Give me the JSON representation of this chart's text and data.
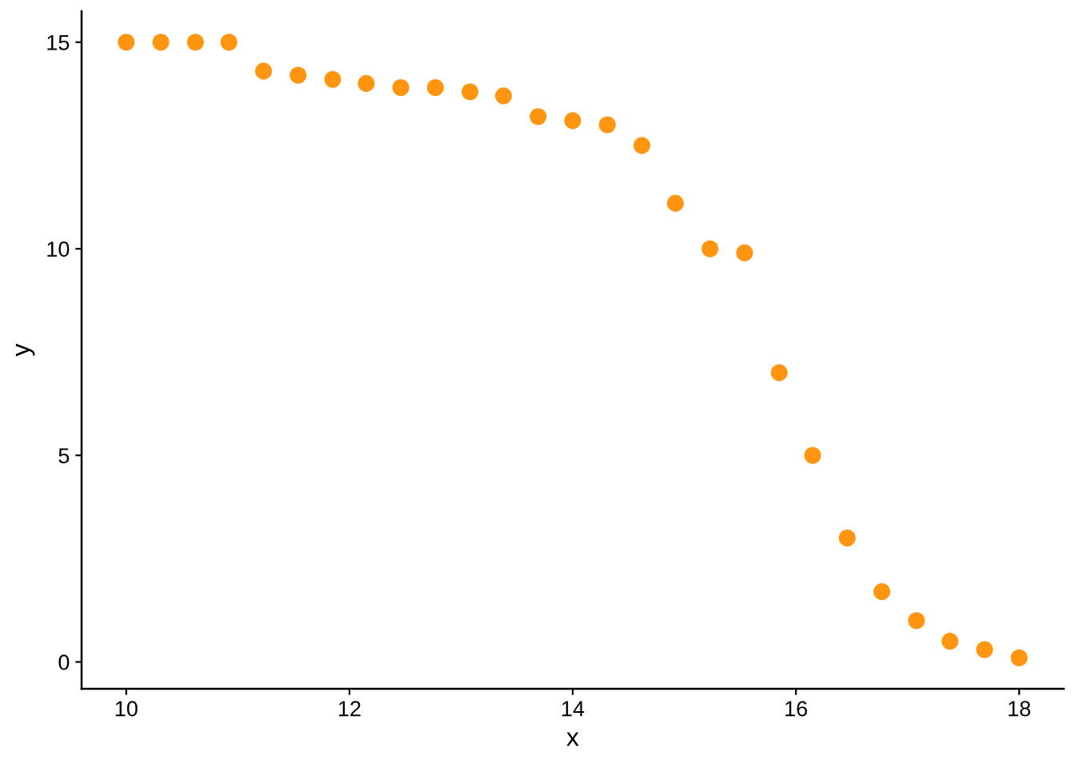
{
  "chart_data": {
    "type": "scatter",
    "xlabel": "x",
    "ylabel": "y",
    "x": [
      10,
      10.31,
      10.62,
      10.92,
      11.23,
      11.54,
      11.85,
      12.15,
      12.46,
      12.77,
      13.08,
      13.38,
      13.69,
      14,
      14.31,
      14.62,
      14.92,
      15.23,
      15.54,
      15.85,
      16.15,
      16.46,
      16.77,
      17.08,
      17.38,
      17.69,
      18
    ],
    "series": [
      {
        "color": "#ff9510",
        "values": [
          15,
          15,
          15,
          15,
          14.3,
          14.2,
          14.1,
          14.0,
          13.9,
          13.9,
          13.8,
          13.7,
          13.2,
          13.1,
          13.0,
          12.5,
          11.1,
          10.0,
          9.9,
          7.0,
          5.0,
          3.0,
          1.7,
          1.0,
          0.5,
          0.3,
          0.1
        ]
      }
    ],
    "xlim": [
      9.6,
      18.4
    ],
    "ylim": [
      -0.65,
      15.75
    ],
    "xticks": [
      10,
      12,
      14,
      16,
      18
    ],
    "yticks": [
      0,
      5,
      10,
      15
    ],
    "grid": false,
    "marker": "circle"
  }
}
